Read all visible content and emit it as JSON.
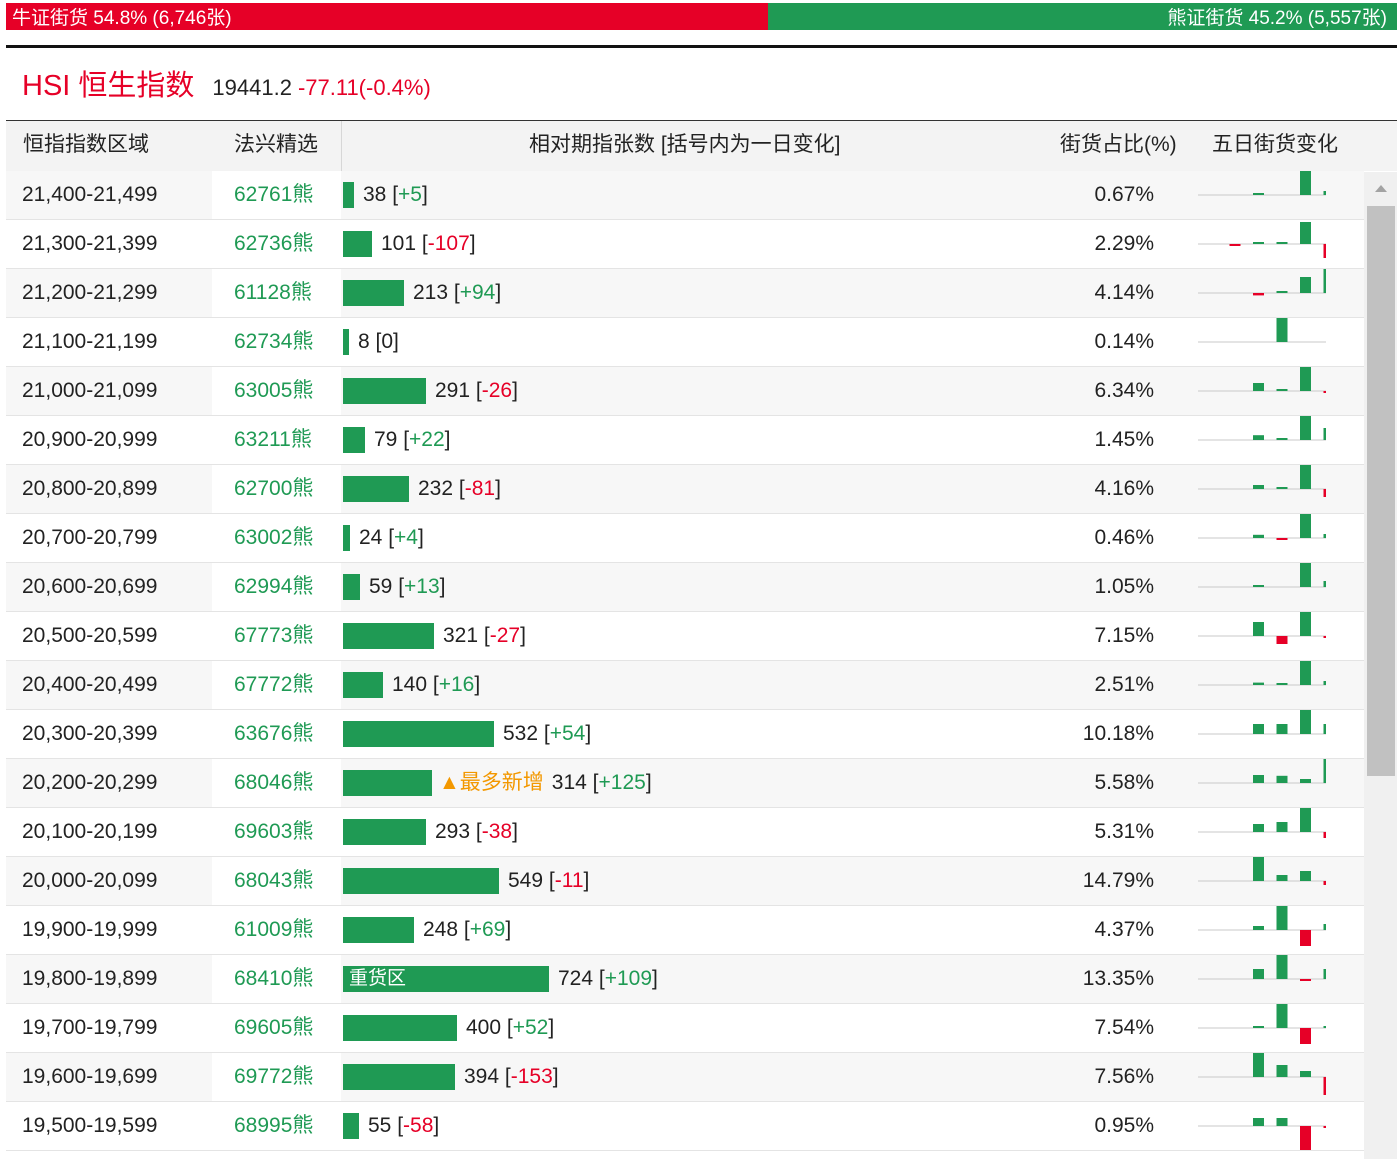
{
  "ratio": {
    "bull_label": "牛证街货 54.8% (6,746张)",
    "bull_share": 0.548,
    "bear_label": "熊证街货 45.2% (5,557张)",
    "bull_color": "#e60027",
    "bear_color": "#1f9a54"
  },
  "index": {
    "name": "HSI 恒生指数",
    "price": "19441.2",
    "change": "-77.11(-0.4%)"
  },
  "table": {
    "headers": {
      "range": "恒指指数区域",
      "warrant": "法兴精选",
      "bar": "相对期指张数 [括号内为一日变化]",
      "pct": "街货占比(%)",
      "spark": "五日街货变化"
    },
    "max_count": 724,
    "rows": [
      {
        "range": "21,400-21,499",
        "code": "62761",
        "suffix": "熊",
        "count": 38,
        "count_text": "38",
        "delta": "+5",
        "delta_sign": "pos",
        "pct": "0.67%",
        "spark": [
          0,
          0.05,
          0,
          0.6,
          0.1
        ]
      },
      {
        "range": "21,300-21,399",
        "code": "62736",
        "suffix": "熊",
        "count": 101,
        "count_text": "101",
        "delta": "-107",
        "delta_sign": "neg",
        "pct": "2.29%",
        "spark": [
          -0.03,
          0.02,
          0.02,
          0.55,
          -0.35
        ]
      },
      {
        "range": "21,200-21,299",
        "code": "61128",
        "suffix": "熊",
        "count": 213,
        "count_text": "213",
        "delta": "+94",
        "delta_sign": "pos",
        "pct": "4.14%",
        "spark": [
          0,
          -0.06,
          0.03,
          0.4,
          0.6
        ]
      },
      {
        "range": "21,100-21,199",
        "code": "62734",
        "suffix": "熊",
        "count": 8,
        "count_text": "8",
        "delta": "0",
        "delta_sign": "zero",
        "pct": "0.14%",
        "spark": [
          0,
          0,
          0.6,
          0,
          0
        ]
      },
      {
        "range": "21,000-21,099",
        "code": "63005",
        "suffix": "熊",
        "count": 291,
        "count_text": "291",
        "delta": "-26",
        "delta_sign": "neg",
        "pct": "6.34%",
        "spark": [
          0,
          0.2,
          0.03,
          0.6,
          -0.04
        ]
      },
      {
        "range": "20,900-20,999",
        "code": "63211",
        "suffix": "熊",
        "count": 79,
        "count_text": "79",
        "delta": "+22",
        "delta_sign": "pos",
        "pct": "1.45%",
        "spark": [
          0,
          0.12,
          0.03,
          0.6,
          0.3
        ]
      },
      {
        "range": "20,800-20,899",
        "code": "62700",
        "suffix": "熊",
        "count": 232,
        "count_text": "232",
        "delta": "-81",
        "delta_sign": "neg",
        "pct": "4.16%",
        "spark": [
          0,
          0.1,
          0.03,
          0.6,
          -0.2
        ]
      },
      {
        "range": "20,700-20,799",
        "code": "63002",
        "suffix": "熊",
        "count": 24,
        "count_text": "24",
        "delta": "+4",
        "delta_sign": "pos",
        "pct": "0.46%",
        "spark": [
          0,
          0.08,
          -0.05,
          0.6,
          0.1
        ]
      },
      {
        "range": "20,600-20,699",
        "code": "62994",
        "suffix": "熊",
        "count": 59,
        "count_text": "59",
        "delta": "+13",
        "delta_sign": "pos",
        "pct": "1.05%",
        "spark": [
          0,
          0.03,
          0,
          0.6,
          0.15
        ]
      },
      {
        "range": "20,500-20,599",
        "code": "67773",
        "suffix": "熊",
        "count": 321,
        "count_text": "321",
        "delta": "-27",
        "delta_sign": "neg",
        "pct": "7.15%",
        "spark": [
          0,
          0.35,
          -0.2,
          0.6,
          -0.04
        ]
      },
      {
        "range": "20,400-20,499",
        "code": "67772",
        "suffix": "熊",
        "count": 140,
        "count_text": "140",
        "delta": "+16",
        "delta_sign": "pos",
        "pct": "2.51%",
        "spark": [
          0,
          0.06,
          0.03,
          0.6,
          0.1
        ]
      },
      {
        "range": "20,300-20,399",
        "code": "63676",
        "suffix": "熊",
        "count": 532,
        "count_text": "532",
        "delta": "+54",
        "delta_sign": "pos",
        "pct": "10.18%",
        "spark": [
          0,
          0.25,
          0.25,
          0.6,
          0.25
        ]
      },
      {
        "range": "20,200-20,299",
        "code": "68046",
        "suffix": "熊",
        "count": 314,
        "count_text": "314",
        "delta": "+125",
        "delta_sign": "pos",
        "pct": "5.58%",
        "spark": [
          0,
          0.2,
          0.18,
          0.1,
          0.6
        ],
        "tag": "▲最多新增"
      },
      {
        "range": "20,100-20,199",
        "code": "69603",
        "suffix": "熊",
        "count": 293,
        "count_text": "293",
        "delta": "-38",
        "delta_sign": "neg",
        "pct": "5.31%",
        "spark": [
          0,
          0.2,
          0.25,
          0.6,
          -0.15
        ]
      },
      {
        "range": "20,000-20,099",
        "code": "68043",
        "suffix": "熊",
        "count": 549,
        "count_text": "549",
        "delta": "-11",
        "delta_sign": "neg",
        "pct": "14.79%",
        "spark": [
          0,
          0.6,
          0.15,
          0.25,
          -0.1
        ]
      },
      {
        "range": "19,900-19,999",
        "code": "61009",
        "suffix": "熊",
        "count": 248,
        "count_text": "248",
        "delta": "+69",
        "delta_sign": "pos",
        "pct": "4.37%",
        "spark": [
          0,
          0.1,
          0.6,
          -0.4,
          0.15
        ]
      },
      {
        "range": "19,800-19,899",
        "code": "68410",
        "suffix": "熊",
        "count": 724,
        "count_text": "724",
        "delta": "+109",
        "delta_sign": "pos",
        "pct": "13.35%",
        "spark": [
          0,
          0.25,
          0.6,
          -0.03,
          0.25
        ],
        "bar_label": "重货区"
      },
      {
        "range": "19,700-19,799",
        "code": "69605",
        "suffix": "熊",
        "count": 400,
        "count_text": "400",
        "delta": "+52",
        "delta_sign": "pos",
        "pct": "7.54%",
        "spark": [
          0,
          0.05,
          0.6,
          -0.4,
          0.03
        ]
      },
      {
        "range": "19,600-19,699",
        "code": "69772",
        "suffix": "熊",
        "count": 394,
        "count_text": "394",
        "delta": "-153",
        "delta_sign": "neg",
        "pct": "7.56%",
        "spark": [
          0,
          0.6,
          0.3,
          0.15,
          -0.45
        ]
      },
      {
        "range": "19,500-19,599",
        "code": "68995",
        "suffix": "熊",
        "count": 55,
        "count_text": "55",
        "delta": "-58",
        "delta_sign": "neg",
        "pct": "0.95%",
        "spark": [
          0,
          0.2,
          0.2,
          -0.6,
          -0.04
        ]
      }
    ]
  }
}
